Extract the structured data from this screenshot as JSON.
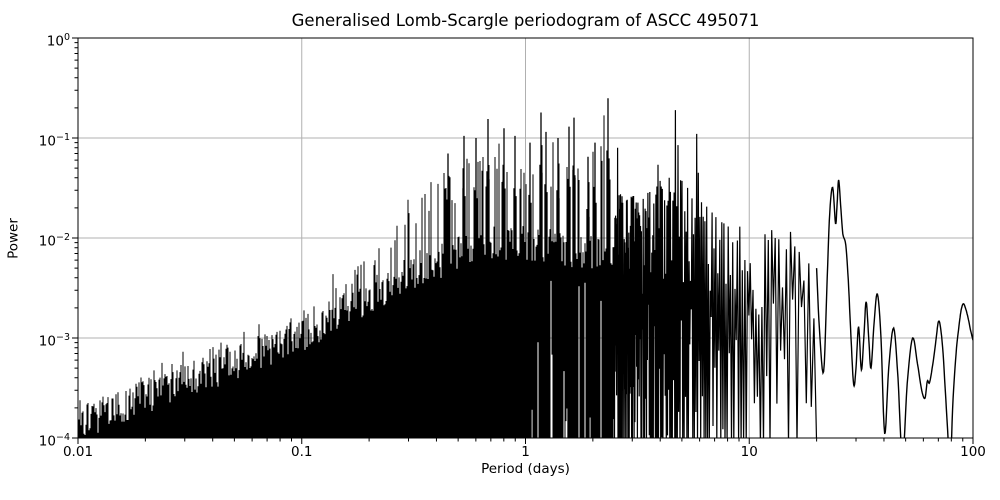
{
  "chart_data": {
    "type": "line",
    "title": "Generalised Lomb-Scargle periodogram of ASCC 495071",
    "xlabel": "Period (days)",
    "ylabel": "Power",
    "xscale": "log",
    "yscale": "log",
    "xlim": [
      0.01,
      100
    ],
    "ylim": [
      0.0001,
      1
    ],
    "grid": true,
    "legend": false,
    "line_color": "#000000",
    "grid_color": "#b0b0b0",
    "axis_color": "#000000",
    "background": "#ffffff",
    "x_ticks": [
      {
        "value": 0.01,
        "label": "0.01"
      },
      {
        "value": 0.1,
        "label": "0.1"
      },
      {
        "value": 1,
        "label": "1"
      },
      {
        "value": 10,
        "label": "10"
      },
      {
        "value": 100,
        "label": "100"
      }
    ],
    "y_tick_exponents": [
      0,
      -1,
      -2,
      -3,
      -4
    ],
    "series": {
      "description": "Generalised Lomb-Scargle power vs period; densely sampled in frequency so short periods form a solid noise mass, long periods resolve into smooth lobes",
      "global_max": {
        "period_days": 2.33,
        "power": 0.25
      },
      "major_peaks": [
        [
          0.45,
          0.07
        ],
        [
          0.53,
          0.105
        ],
        [
          0.6,
          0.1
        ],
        [
          0.68,
          0.155
        ],
        [
          0.8,
          0.125
        ],
        [
          0.9,
          0.105
        ],
        [
          1.05,
          0.09
        ],
        [
          1.17,
          0.18
        ],
        [
          1.23,
          0.115
        ],
        [
          1.4,
          0.1
        ],
        [
          1.56,
          0.13
        ],
        [
          1.64,
          0.16
        ],
        [
          1.9,
          0.065
        ],
        [
          2.05,
          0.09
        ],
        [
          2.33,
          0.25
        ],
        [
          2.58,
          0.08
        ],
        [
          3.2,
          0.018
        ],
        [
          3.9,
          0.054
        ],
        [
          4.7,
          0.19
        ],
        [
          4.78,
          0.085
        ],
        [
          5.8,
          0.11
        ],
        [
          5.95,
          0.045
        ],
        [
          6.8,
          0.018
        ],
        [
          9.0,
          0.013
        ],
        [
          12.5,
          0.012
        ],
        [
          15.4,
          0.0115
        ]
      ],
      "upper_envelope": [
        [
          0.01,
          0.00022
        ],
        [
          0.02,
          0.0004
        ],
        [
          0.03,
          0.0006
        ],
        [
          0.05,
          0.0009
        ],
        [
          0.07,
          0.0014
        ],
        [
          0.1,
          0.0022
        ],
        [
          0.15,
          0.0045
        ],
        [
          0.2,
          0.008
        ],
        [
          0.25,
          0.015
        ],
        [
          0.3,
          0.03
        ],
        [
          0.35,
          0.045
        ],
        [
          0.4,
          0.065
        ],
        [
          0.5,
          0.08
        ],
        [
          0.6,
          0.105
        ],
        [
          0.7,
          0.16
        ],
        [
          0.8,
          0.125
        ],
        [
          0.9,
          0.105
        ],
        [
          1.0,
          0.11
        ],
        [
          1.17,
          0.18
        ],
        [
          1.35,
          0.12
        ],
        [
          1.6,
          0.155
        ],
        [
          1.9,
          0.13
        ],
        [
          2.33,
          0.25
        ],
        [
          2.5,
          0.03
        ],
        [
          3.0,
          0.028
        ],
        [
          3.5,
          0.03
        ],
        [
          4.0,
          0.04
        ],
        [
          4.5,
          0.045
        ],
        [
          5.0,
          0.04
        ],
        [
          5.5,
          0.032
        ],
        [
          6.0,
          0.03
        ],
        [
          6.5,
          0.022
        ],
        [
          7.0,
          0.018
        ],
        [
          8.0,
          0.014
        ],
        [
          9.0,
          0.014
        ],
        [
          10,
          0.015
        ],
        [
          11,
          0.013
        ],
        [
          12,
          0.012
        ],
        [
          13,
          0.011
        ],
        [
          14,
          0.01
        ],
        [
          15,
          0.011
        ],
        [
          16,
          0.009
        ],
        [
          17,
          0.0075
        ],
        [
          18,
          0.006
        ],
        [
          19,
          0.006
        ],
        [
          20,
          0.005
        ]
      ],
      "dense_mass_top": [
        [
          0.01,
          0.00014
        ],
        [
          0.015,
          0.0002
        ],
        [
          0.02,
          0.00026
        ],
        [
          0.03,
          0.00038
        ],
        [
          0.05,
          0.00055
        ],
        [
          0.07,
          0.00075
        ],
        [
          0.1,
          0.0011
        ],
        [
          0.15,
          0.0018
        ],
        [
          0.2,
          0.0026
        ],
        [
          0.3,
          0.0045
        ],
        [
          0.5,
          0.007
        ],
        [
          0.7,
          0.009
        ],
        [
          1.0,
          0.009
        ],
        [
          1.5,
          0.008
        ],
        [
          2.0,
          0.007
        ],
        [
          2.5,
          0.0065
        ]
      ],
      "long_period_curve": [
        [
          20,
          0.005
        ],
        [
          20.6,
          0.0012
        ],
        [
          21.5,
          0.00046
        ],
        [
          22.3,
          0.004
        ],
        [
          22.9,
          0.018
        ],
        [
          23.6,
          0.032
        ],
        [
          24.3,
          0.014
        ],
        [
          24.7,
          0.022
        ],
        [
          25.1,
          0.038
        ],
        [
          25.7,
          0.019
        ],
        [
          26.2,
          0.011
        ],
        [
          27.0,
          0.0085
        ],
        [
          27.7,
          0.0038
        ],
        [
          28.5,
          0.001
        ],
        [
          29.3,
          0.00034
        ],
        [
          30.0,
          0.0005
        ],
        [
          30.8,
          0.0013
        ],
        [
          31.7,
          0.00048
        ],
        [
          32.5,
          0.001
        ],
        [
          33.3,
          0.0023
        ],
        [
          34.2,
          0.001
        ],
        [
          35.0,
          0.0005
        ],
        [
          36.2,
          0.0015
        ],
        [
          37.4,
          0.00275
        ],
        [
          38.8,
          0.001
        ],
        [
          40.3,
          0.00011
        ],
        [
          42.0,
          0.0005
        ],
        [
          44.2,
          0.00126
        ],
        [
          46.2,
          0.0004
        ],
        [
          48.4,
          6e-05
        ],
        [
          50.8,
          0.00035
        ],
        [
          53.7,
          0.001
        ],
        [
          56.5,
          0.00055
        ],
        [
          59.0,
          0.0003
        ],
        [
          61.0,
          0.00025
        ],
        [
          62.5,
          0.00037
        ],
        [
          64.0,
          0.00036
        ],
        [
          66.5,
          0.0006
        ],
        [
          68.5,
          0.001
        ],
        [
          70.0,
          0.00145
        ],
        [
          71.5,
          0.0013
        ],
        [
          73.5,
          0.0007
        ],
        [
          76.0,
          0.0002
        ],
        [
          79.0,
          6e-05
        ],
        [
          81.5,
          0.00025
        ],
        [
          84.0,
          0.0007
        ],
        [
          86.5,
          0.0013
        ],
        [
          88.5,
          0.0019
        ],
        [
          90.5,
          0.0022
        ],
        [
          92.5,
          0.002
        ],
        [
          95.0,
          0.0016
        ],
        [
          97.5,
          0.0012
        ],
        [
          100,
          0.00095
        ]
      ]
    },
    "render_hints": {
      "seed": 20,
      "lobe_spacing_freq": 0.0028,
      "column_regime_max_period": 2.5,
      "resolved_regime_min_period": 20,
      "sliver_min_period": 1.05,
      "sliver_probability": 0.25,
      "spike_probability": 0.22
    }
  }
}
